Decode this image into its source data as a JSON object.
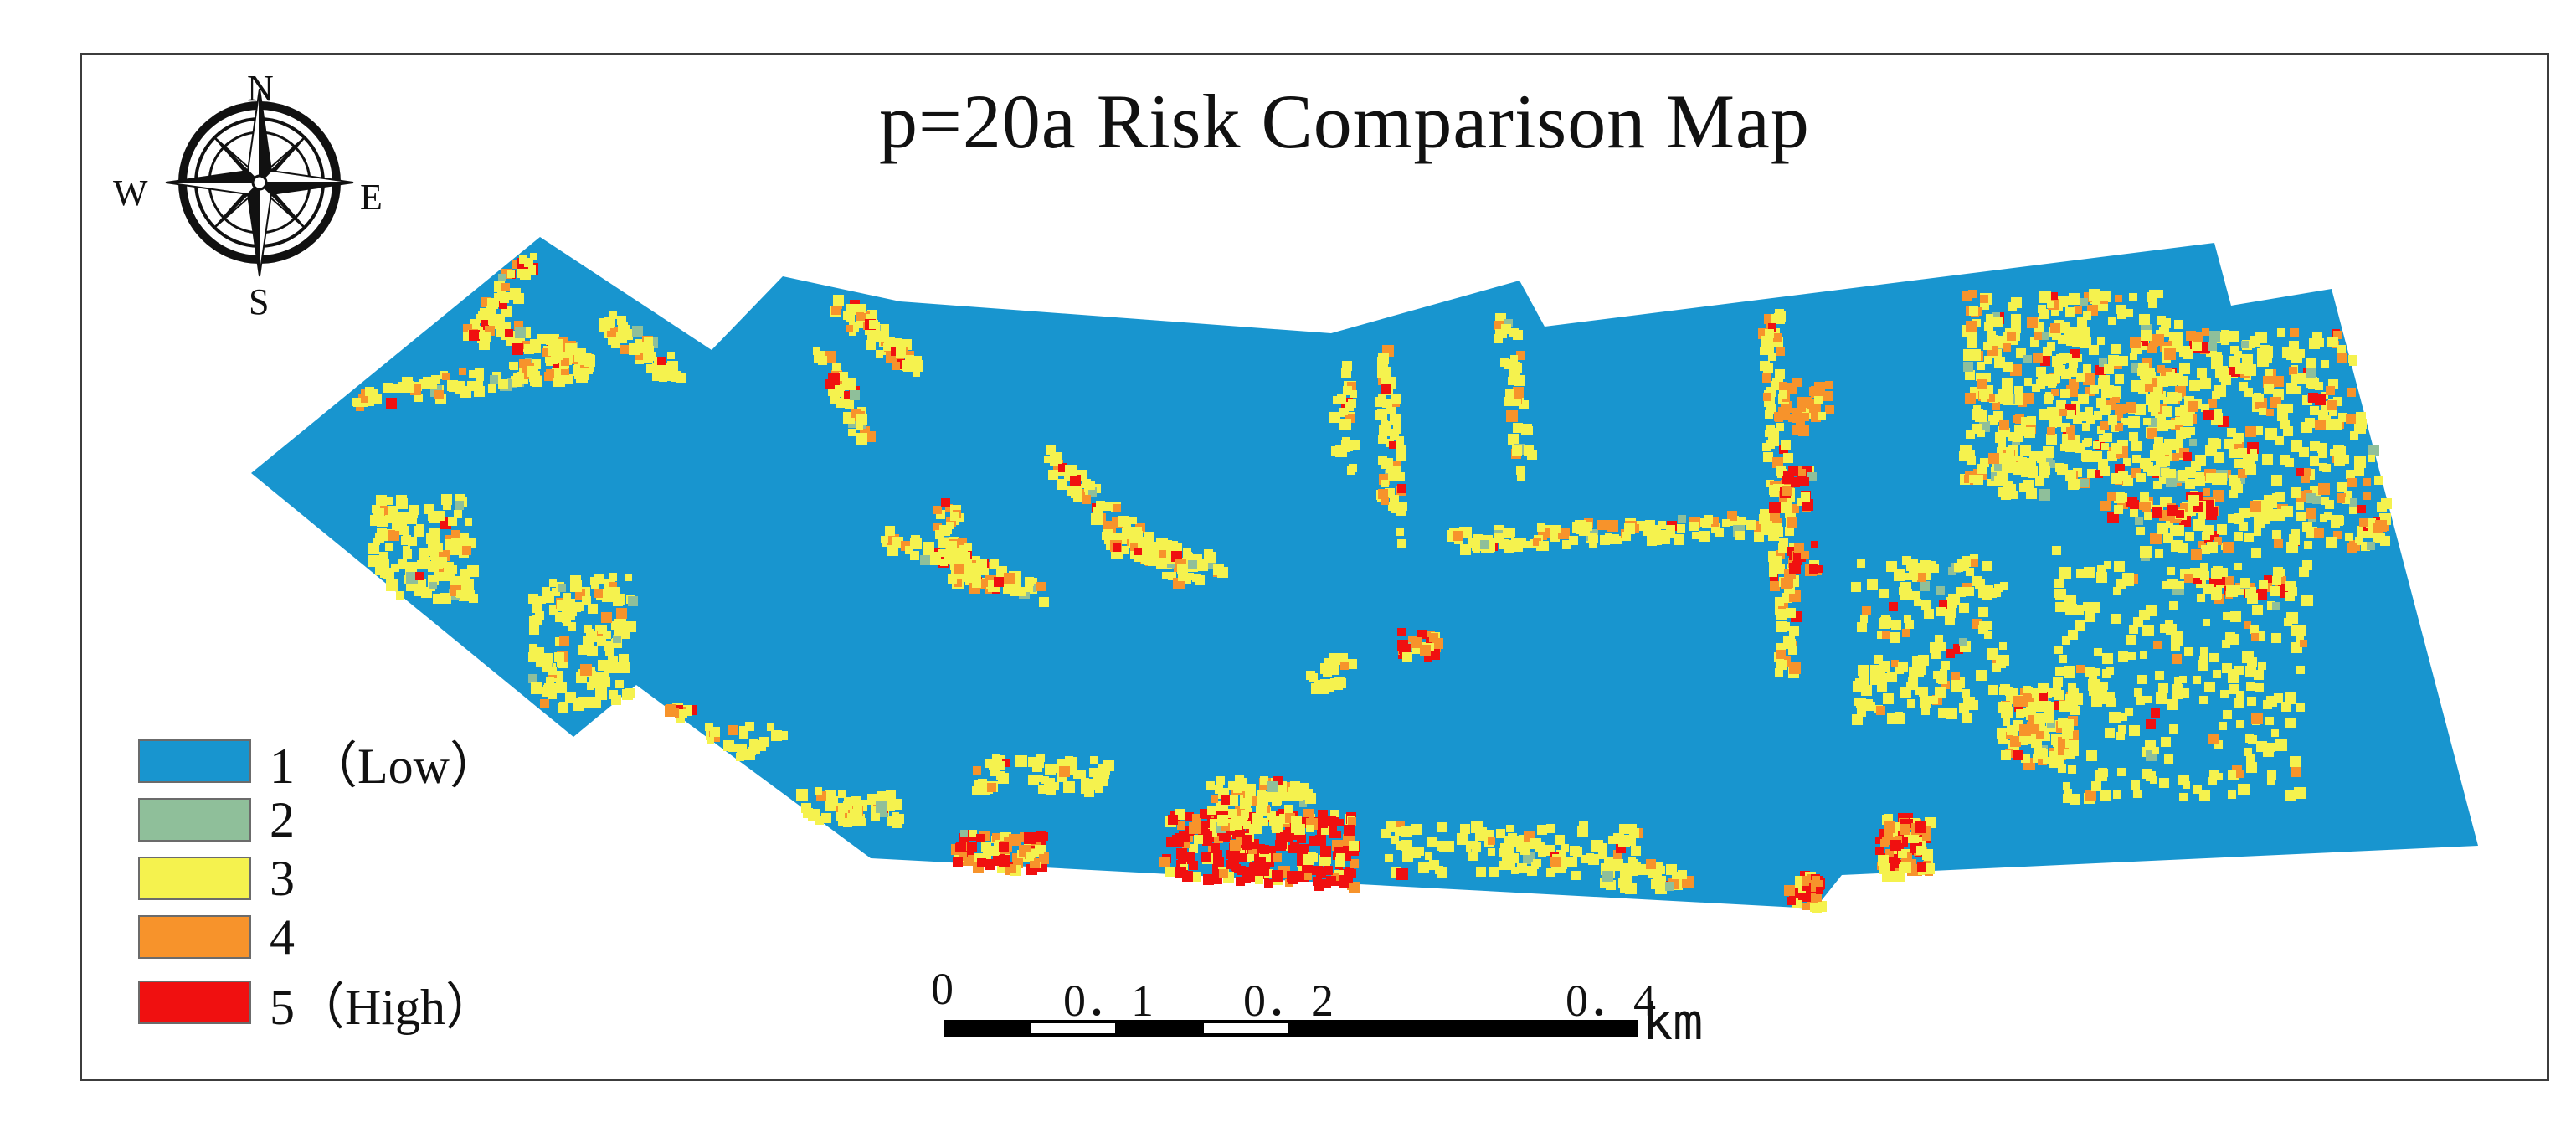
{
  "title": "p=20a Risk Comparison Map",
  "compass": {
    "n": "N",
    "s": "S",
    "e": "E",
    "w": "W"
  },
  "legend": [
    {
      "label": "1 （Low）",
      "color": "#1895cf"
    },
    {
      "label": "2",
      "color": "#8fbf9a"
    },
    {
      "label": "3",
      "color": "#f5f24e"
    },
    {
      "label": "4",
      "color": "#f7932b"
    },
    {
      "label": "5（High）",
      "color": "#f01010"
    }
  ],
  "scale_bar": {
    "ticks": [
      "0",
      "0．1",
      "0．2",
      "0．4"
    ],
    "unit": "km"
  }
}
